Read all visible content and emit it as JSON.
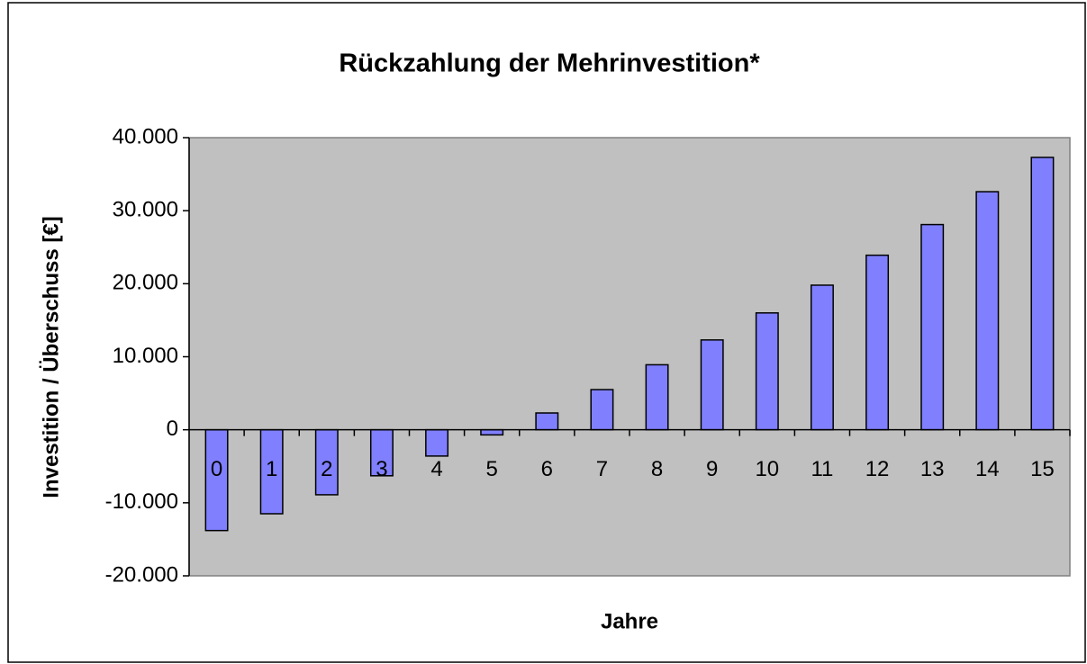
{
  "chart_data": {
    "type": "bar",
    "title": "Rückzahlung der Mehrinvestition*",
    "x_label": "Jahre",
    "y_label": "Investition / Überschuss [€]",
    "categories": [
      "0",
      "1",
      "2",
      "3",
      "4",
      "5",
      "6",
      "7",
      "8",
      "9",
      "10",
      "11",
      "12",
      "13",
      "14",
      "15"
    ],
    "values": [
      -13800,
      -11500,
      -8900,
      -6300,
      -3600,
      -700,
      2300,
      5500,
      8900,
      12300,
      16000,
      19800,
      23900,
      28100,
      32600,
      37300
    ],
    "color": "#8080ff",
    "ylim": [
      -20000,
      40000
    ],
    "yticks": [
      {
        "value": -20000,
        "label": "-20.000"
      },
      {
        "value": -10000,
        "label": "-10.000"
      },
      0,
      {
        "value": 10000,
        "label": "10.000"
      },
      {
        "value": 20000,
        "label": "20.000"
      },
      {
        "value": 30000,
        "label": "30.000"
      },
      {
        "value": 40000,
        "label": "40.000"
      }
    ],
    "grid": false
  }
}
